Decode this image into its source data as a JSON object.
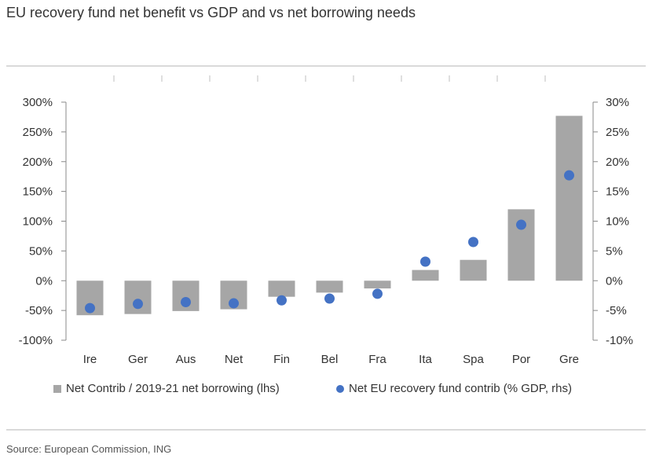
{
  "title": "EU recovery fund net benefit vs GDP and vs net borrowing needs",
  "source": "Source: European Commission, ING",
  "colors": {
    "bar": "#a6a6a6",
    "dot": "#4472c4",
    "axis": "#888888",
    "rule": "#d9d9d9"
  },
  "chart_data": {
    "type": "bar",
    "categories": [
      "Ire",
      "Ger",
      "Aus",
      "Net",
      "Fin",
      "Bel",
      "Fra",
      "Ita",
      "Spa",
      "Por",
      "Gre"
    ],
    "series": [
      {
        "name": "Net Contrib / 2019-21 net borrowing (lhs)",
        "type": "bar",
        "axis": "left",
        "values": [
          -58,
          -56,
          -51,
          -48,
          -27,
          -20,
          -13,
          18,
          35,
          120,
          277
        ]
      },
      {
        "name": "Net EU recovery fund contrib (% GDP, rhs)",
        "type": "scatter",
        "axis": "right",
        "values": [
          -4.6,
          -3.9,
          -3.6,
          -3.8,
          -3.3,
          -3.0,
          -2.2,
          3.2,
          6.5,
          9.4,
          17.7
        ]
      }
    ],
    "y_left": {
      "ylim": [
        -100,
        300
      ],
      "ticks": [
        300,
        250,
        200,
        150,
        100,
        50,
        0,
        -50,
        -100
      ],
      "tick_labels": [
        "300%",
        "250%",
        "200%",
        "150%",
        "100%",
        "50%",
        "0%",
        "-50%",
        "-100%"
      ]
    },
    "y_right": {
      "ylim": [
        -10,
        30
      ],
      "ticks": [
        30,
        25,
        20,
        15,
        10,
        5,
        0,
        -5,
        -10
      ],
      "tick_labels": [
        "30%",
        "25%",
        "20%",
        "15%",
        "10%",
        "5%",
        "0%",
        "-5%",
        "-10%"
      ]
    },
    "grid": false,
    "legend_position": "bottom"
  }
}
